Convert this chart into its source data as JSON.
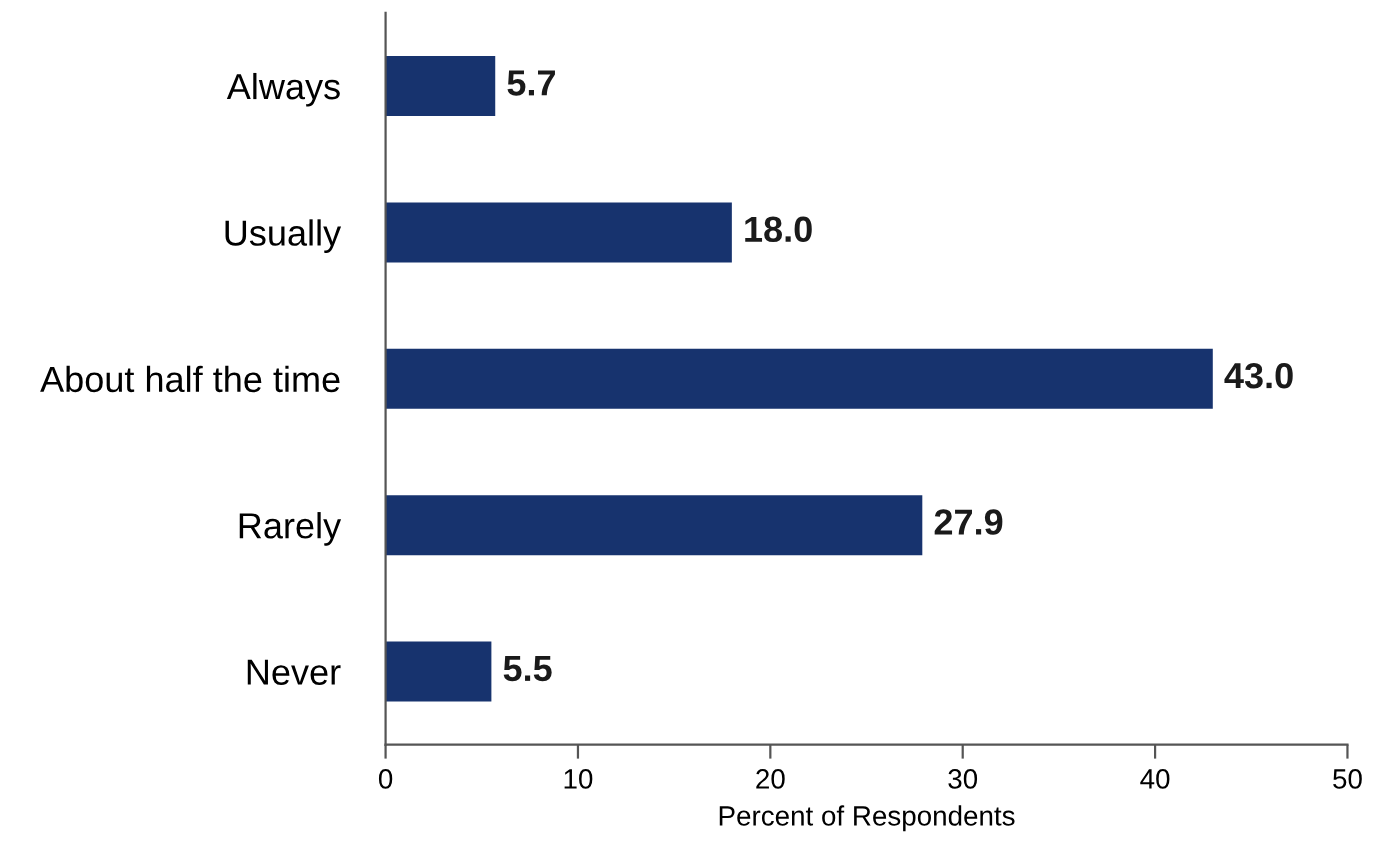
{
  "chart_data": {
    "type": "bar",
    "orientation": "horizontal",
    "categories": [
      "Always",
      "Usually",
      "About half the time",
      "Rarely",
      "Never"
    ],
    "values": [
      5.7,
      18.0,
      43.0,
      27.9,
      5.5
    ],
    "color": "#17336e",
    "xlabel": "Percent of Respondents",
    "xlim": [
      0,
      50
    ],
    "xticks": [
      0,
      10,
      20,
      30,
      40,
      50
    ],
    "value_labels": [
      "5.7",
      "18.0",
      "43.0",
      "27.9",
      "5.5"
    ],
    "grid": false,
    "legend": false
  }
}
